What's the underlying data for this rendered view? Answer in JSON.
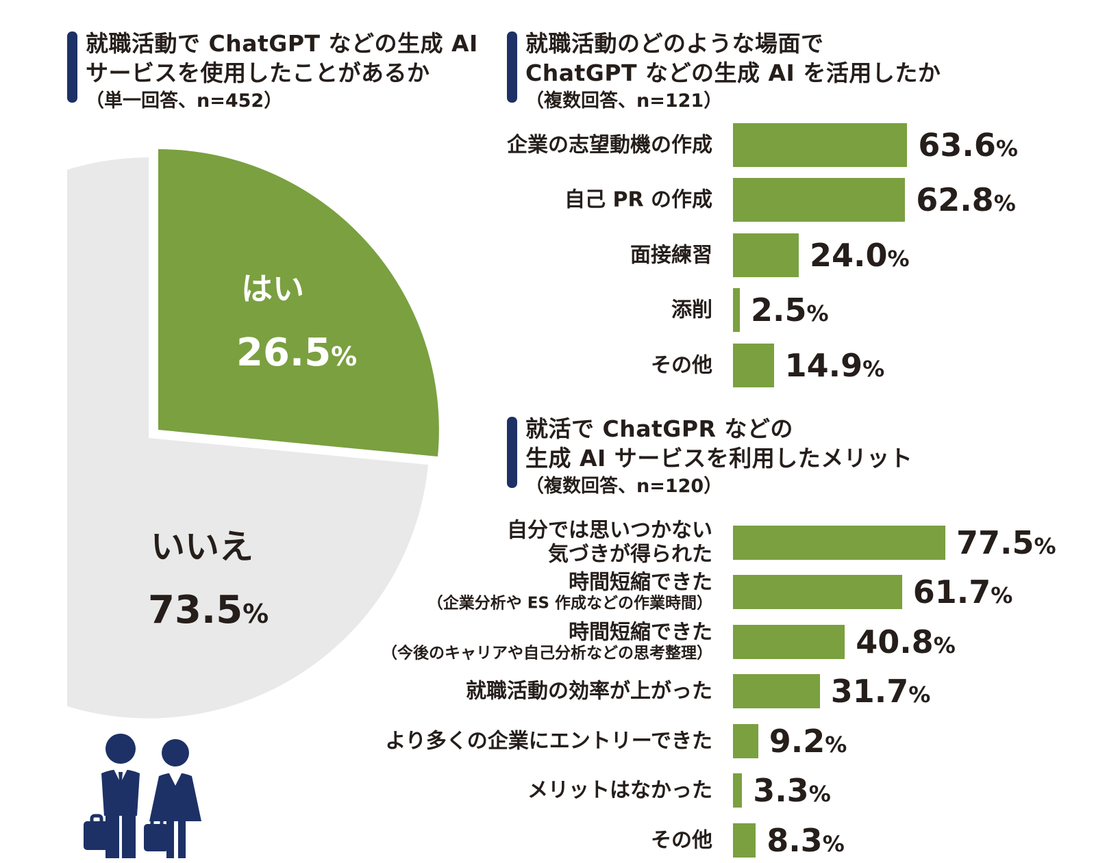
{
  "colors": {
    "green": "#7aa040",
    "gray": "#e9e9e9",
    "navy": "#1d3166",
    "text": "#251e1b"
  },
  "percent_sign": "%",
  "q1": {
    "title_line1": "就職活動で ChatGPT などの生成 AI",
    "title_line2": "サービスを使用したことがあるか",
    "note": "（単一回答、n=452）",
    "pie": {
      "yes_label": "はい",
      "yes_value": "26.5",
      "no_label": "いいえ",
      "no_value": "73.5"
    }
  },
  "q2": {
    "title_line1": "就職活動のどのような場面で",
    "title_line2": "ChatGPT などの生成 AI を活用したか",
    "note": "（複数回答、n=121）",
    "rows": [
      {
        "label": "企業の志望動機の作成",
        "value": "63.6"
      },
      {
        "label": "自己 PR の作成",
        "value": "62.8"
      },
      {
        "label": "面接練習",
        "value": "24.0"
      },
      {
        "label": "添削",
        "value": "2.5"
      },
      {
        "label": "その他",
        "value": "14.9"
      }
    ]
  },
  "q3": {
    "title_line1": "就活で ChatGPR などの",
    "title_line2": "生成 AI サービスを利用したメリット",
    "note": "（複数回答、n=120）",
    "rows": [
      {
        "label": "自分では思いつかない",
        "label2": "気づきが得られた",
        "value": "77.5"
      },
      {
        "label": "時間短縮できた",
        "sub": "（企業分析や ES 作成などの作業時間）",
        "value": "61.7"
      },
      {
        "label": "時間短縮できた",
        "sub": "（今後のキャリアや自己分析などの思考整理）",
        "value": "40.8"
      },
      {
        "label": "就職活動の効率が上がった",
        "value": "31.7"
      },
      {
        "label": "より多くの企業にエントリーできた",
        "value": "9.2"
      },
      {
        "label": "メリットはなかった",
        "value": "3.3"
      },
      {
        "label": "その他",
        "value": "8.3"
      }
    ]
  },
  "chart_data": [
    {
      "type": "pie",
      "title": "就職活動で ChatGPT などの生成 AI サービスを使用したことがあるか",
      "note": "（単一回答、n=452）",
      "labels": [
        "はい",
        "いいえ"
      ],
      "values": [
        26.5,
        73.5
      ],
      "colors": [
        "#7aa040",
        "#e9e9e9"
      ],
      "unit": "%",
      "start_angle_deg": 0,
      "direction": "clockwise",
      "exploded_slice": "はい",
      "labels_inside": true
    },
    {
      "type": "bar",
      "orientation": "horizontal",
      "title": "就職活動のどのような場面で ChatGPT などの生成 AI を活用したか",
      "note": "（複数回答、n=121）",
      "categories": [
        "企業の志望動機の作成",
        "自己 PR の作成",
        "面接練習",
        "添削",
        "その他"
      ],
      "values": [
        63.6,
        62.8,
        24.0,
        2.5,
        14.9
      ],
      "unit": "%",
      "bar_color": "#7aa040",
      "xlim": [
        0,
        80
      ],
      "grid": false,
      "value_labels_shown": true
    },
    {
      "type": "bar",
      "orientation": "horizontal",
      "title": "就活で ChatGPR などの生成 AI サービスを利用したメリット",
      "note": "（複数回答、n=120）",
      "categories": [
        "自分では思いつかない気づきが得られた",
        "時間短縮できた（企業分析や ES 作成などの作業時間）",
        "時間短縮できた（今後のキャリアや自己分析などの思考整理）",
        "就職活動の効率が上がった",
        "より多くの企業にエントリーできた",
        "メリットはなかった",
        "その他"
      ],
      "values": [
        77.5,
        61.7,
        40.8,
        31.7,
        9.2,
        3.3,
        8.3
      ],
      "unit": "%",
      "bar_color": "#7aa040",
      "xlim": [
        0,
        80
      ],
      "grid": false,
      "value_labels_shown": true
    }
  ]
}
